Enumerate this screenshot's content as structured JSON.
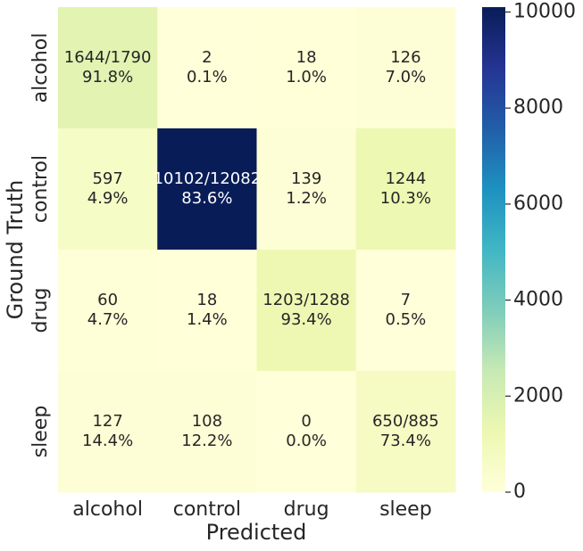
{
  "chart_data": {
    "type": "heatmap",
    "x_label": "Predicted",
    "y_label": "Ground Truth",
    "categories": [
      "alcohol",
      "control",
      "drug",
      "sleep"
    ],
    "y_categories": [
      "alcohol",
      "control",
      "drug",
      "sleep"
    ],
    "values": [
      [
        1644,
        2,
        18,
        126
      ],
      [
        597,
        10102,
        139,
        1244
      ],
      [
        60,
        18,
        1203,
        7
      ],
      [
        127,
        108,
        0,
        650
      ]
    ],
    "value_labels": [
      [
        "1644/1790",
        "2",
        "18",
        "126"
      ],
      [
        "597",
        "10102/12082",
        "139",
        "1244"
      ],
      [
        "60",
        "18",
        "1203/1288",
        "7"
      ],
      [
        "127",
        "108",
        "0",
        "650/885"
      ]
    ],
    "percent_labels": [
      [
        "91.8%",
        "0.1%",
        "1.0%",
        "7.0%"
      ],
      [
        "4.9%",
        "83.6%",
        "1.2%",
        "10.3%"
      ],
      [
        "4.7%",
        "1.4%",
        "93.4%",
        "0.5%"
      ],
      [
        "14.4%",
        "12.2%",
        "0.0%",
        "73.4%"
      ]
    ],
    "clim": [
      0,
      10102
    ],
    "cticks": [
      0,
      2000,
      4000,
      6000,
      8000,
      10000
    ],
    "colormap": [
      "#ffffd9",
      "#edf8b1",
      "#c7e9b4",
      "#7fcdbb",
      "#41b6c4",
      "#1d91c0",
      "#225ea8",
      "#253494",
      "#081d58"
    ]
  }
}
